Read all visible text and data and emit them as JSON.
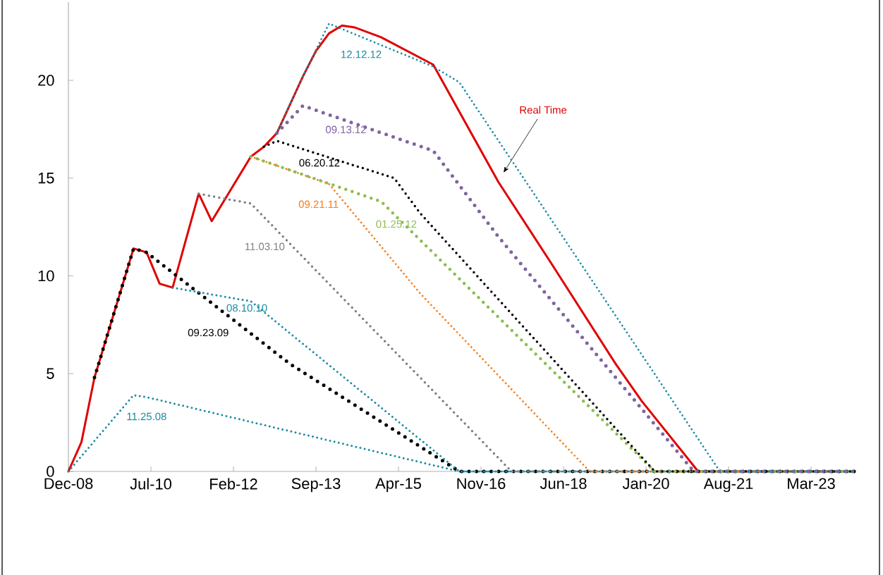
{
  "chart_data": {
    "type": "line",
    "xlim": [
      "2008-12",
      "2024-01"
    ],
    "ylim": [
      0,
      24
    ],
    "xticks": [
      {
        "value": "2008-12",
        "label": "Dec-08"
      },
      {
        "value": "2010-07",
        "label": "Jul-10"
      },
      {
        "value": "2012-02",
        "label": "Feb-12"
      },
      {
        "value": "2013-09",
        "label": "Sep-13"
      },
      {
        "value": "2015-04",
        "label": "Apr-15"
      },
      {
        "value": "2016-11",
        "label": "Nov-16"
      },
      {
        "value": "2018-06",
        "label": "Jun-18"
      },
      {
        "value": "2020-01",
        "label": "Jan-20"
      },
      {
        "value": "2021-08",
        "label": "Aug-21"
      },
      {
        "value": "2023-03",
        "label": "Mar-23"
      }
    ],
    "yticks": [
      0,
      5,
      10,
      15,
      20
    ],
    "marker": "none",
    "series": [
      {
        "name": "11.25.08",
        "color": "#1a8ca3",
        "line_style": "dotted",
        "x": [
          "2008-12",
          "2010-03",
          "2010-06",
          "2016-06",
          "2024-01"
        ],
        "values": [
          0,
          3.9,
          3.8,
          0,
          0
        ]
      },
      {
        "name": "09.23.09",
        "color": "#000000",
        "line_style": "dotted",
        "x": [
          "2009-06",
          "2010-03",
          "2010-06",
          "2013-03",
          "2016-06",
          "2024-01"
        ],
        "values": [
          4.8,
          11.4,
          11.2,
          5.5,
          0,
          0
        ]
      },
      {
        "name": "08.10.10",
        "color": "#1a8ca3",
        "line_style": "dotted",
        "x": [
          "2010-12",
          "2012-06",
          "2016-06",
          "2024-01"
        ],
        "values": [
          9.4,
          8.7,
          0,
          0
        ]
      },
      {
        "name": "11.03.10",
        "color": "#808080",
        "line_style": "dotted",
        "x": [
          "2011-06",
          "2012-06",
          "2017-06",
          "2024-01"
        ],
        "values": [
          14.2,
          13.7,
          0,
          0
        ]
      },
      {
        "name": "09.21.11",
        "color": "#f77d19",
        "line_style": "dotted",
        "x": [
          "2012-06",
          "2013-12",
          "2015-09",
          "2016-09",
          "2018-12",
          "2024-01"
        ],
        "values": [
          16.1,
          14.7,
          9.1,
          6.3,
          0,
          0
        ]
      },
      {
        "name": "01.25.12",
        "color": "#8cbc4f",
        "line_style": "dotted",
        "x": [
          "2012-06",
          "2014-12",
          "2020-03",
          "2024-01"
        ],
        "values": [
          16.1,
          13.8,
          0,
          0
        ]
      },
      {
        "name": "06.20.12",
        "color": "#000000",
        "line_style": "dotted",
        "x": [
          "2012-09",
          "2012-12",
          "2015-03",
          "2015-09",
          "2020-03",
          "2024-01"
        ],
        "values": [
          16.6,
          16.9,
          15.0,
          13.2,
          0,
          0
        ]
      },
      {
        "name": "09.13.12",
        "color": "#8064a2",
        "line_style": "dotted",
        "x": [
          "2012-12",
          "2013-06",
          "2015-12",
          "2017-03",
          "2020-12",
          "2024-01"
        ],
        "values": [
          17.3,
          18.7,
          16.4,
          12.0,
          0,
          0
        ]
      },
      {
        "name": "12.12.12",
        "color": "#1a8ca3",
        "line_style": "dotted",
        "x": [
          "2012-12",
          "2013-06",
          "2013-12",
          "2015-12",
          "2016-06",
          "2021-06",
          "2024-01"
        ],
        "values": [
          17.3,
          20.2,
          22.9,
          20.7,
          19.9,
          0,
          0
        ]
      },
      {
        "name": "Real Time",
        "color": "#e00000",
        "line_style": "solid",
        "x": [
          "2008-12",
          "2009-03",
          "2009-06",
          "2010-03",
          "2010-06",
          "2010-09",
          "2010-12",
          "2011-06",
          "2011-09",
          "2012-06",
          "2012-09",
          "2012-12",
          "2013-06",
          "2013-09",
          "2013-12",
          "2014-03",
          "2014-06",
          "2014-12",
          "2015-12",
          "2016-09",
          "2017-03",
          "2018-03",
          "2019-06",
          "2019-12",
          "2021-01",
          "2024-01"
        ],
        "values": [
          0,
          1.5,
          4.8,
          11.4,
          11.2,
          9.6,
          9.4,
          14.2,
          12.8,
          16.1,
          16.6,
          17.3,
          20.2,
          21.5,
          22.4,
          22.8,
          22.7,
          22.2,
          20.8,
          17.2,
          14.8,
          10.7,
          5.5,
          3.6,
          0,
          0
        ]
      }
    ]
  }
}
